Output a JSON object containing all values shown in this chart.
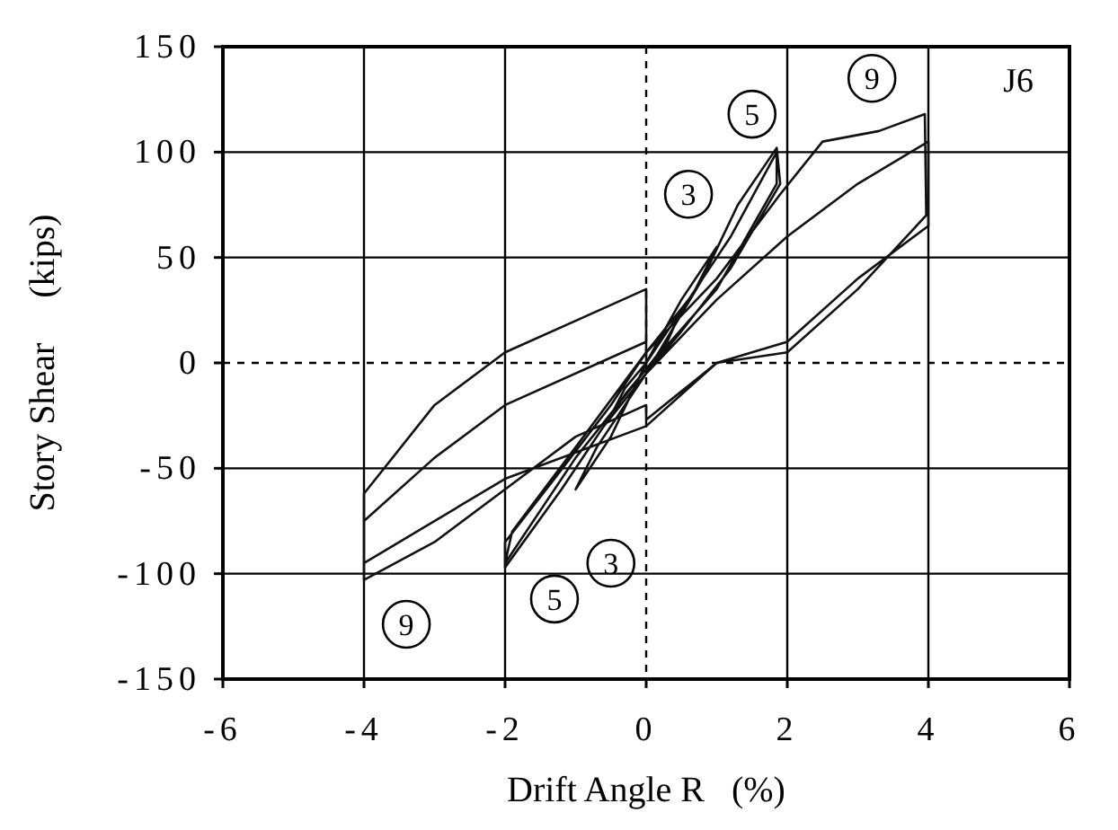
{
  "chart_data": {
    "type": "line",
    "xlabel": "Drift Angle R   (%)",
    "ylabel": "Story Shear     (kips)",
    "xlim": [
      -6,
      6
    ],
    "ylim": [
      -150,
      150
    ],
    "xticks": [
      -6,
      -4,
      -2,
      0,
      2,
      4,
      6
    ],
    "yticks": [
      -150,
      -100,
      -50,
      0,
      50,
      100,
      150
    ],
    "grid": true,
    "line_style": "solid",
    "annotations": [
      "J6",
      {
        "text": "9",
        "x": 3.2,
        "y": 135
      },
      {
        "text": "5",
        "x": 1.5,
        "y": 118
      },
      {
        "text": "3",
        "x": 0.6,
        "y": 80
      },
      {
        "text": "3",
        "x": -0.5,
        "y": -95
      },
      {
        "text": "5",
        "x": -1.3,
        "y": -112
      },
      {
        "text": "9",
        "x": -3.4,
        "y": -124
      }
    ],
    "series": [
      {
        "color": "#111111",
        "x": [
          0,
          0.3,
          0.5,
          0.3,
          0,
          -0.3,
          -0.5,
          -0.3,
          0,
          0.5,
          1,
          0.7,
          0,
          -0.5,
          -1,
          -0.7,
          0,
          0.8,
          1.3,
          1.85,
          1.9,
          1.2,
          0.5,
          0,
          -0.6,
          -1.2,
          -2,
          -2,
          -1.3,
          -0.5,
          0,
          0.6,
          1.2,
          1.85,
          1.85,
          1,
          0,
          -1,
          -2,
          -1.9,
          -1,
          0,
          1,
          1.9,
          2.5,
          3.3,
          3.95,
          3.97,
          3,
          2,
          1,
          0,
          0,
          -1,
          -2,
          -3,
          -4,
          -4,
          -3,
          -2,
          -1,
          0,
          0,
          1,
          2,
          3,
          4,
          4,
          3,
          2,
          1,
          0,
          -2,
          -4,
          -4,
          -3,
          -2,
          0
        ],
        "values": [
          0,
          15,
          25,
          10,
          -3,
          -15,
          -25,
          -12,
          0,
          30,
          55,
          35,
          0,
          -35,
          -60,
          -40,
          -5,
          40,
          75,
          102,
          85,
          45,
          15,
          -5,
          -30,
          -60,
          -97,
          -85,
          -55,
          -20,
          5,
          30,
          60,
          100,
          85,
          35,
          -3,
          -45,
          -95,
          -80,
          -40,
          5,
          40,
          80,
          105,
          110,
          118,
          70,
          35,
          5,
          0,
          -27,
          -20,
          -35,
          -60,
          -85,
          -103,
          -62,
          -20,
          5,
          20,
          35,
          -5,
          30,
          60,
          85,
          105,
          65,
          40,
          10,
          0,
          -30,
          -55,
          -95,
          -75,
          -45,
          -20,
          10
        ]
      }
    ]
  }
}
